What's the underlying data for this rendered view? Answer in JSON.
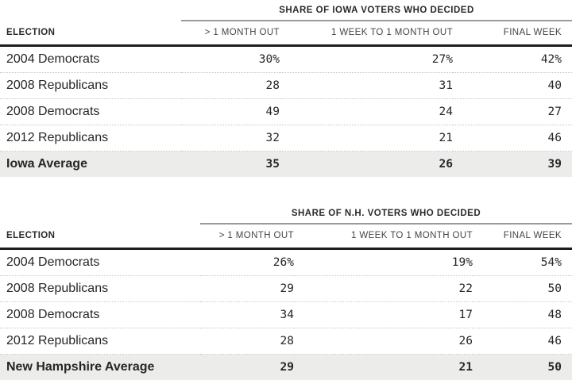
{
  "colors": {
    "background": "#ffffff",
    "text": "#262626",
    "spanner_rule": "#9a9a9a",
    "heavy_rule": "#1d1d1d",
    "row_divider_dotted": "#c8c8c8",
    "average_row_background": "#ececeb"
  },
  "chart_data": [
    {
      "type": "table",
      "title": "SHARE OF IOWA VOTERS WHO DECIDED",
      "columns": [
        "ELECTION",
        "> 1 MONTH OUT",
        "1 WEEK TO 1 MONTH OUT",
        "FINAL WEEK"
      ],
      "rows": [
        {
          "label": "2004 Democrats",
          "values": [
            "30%",
            "27%",
            "42%"
          ]
        },
        {
          "label": "2008 Republicans",
          "values": [
            "28",
            "31",
            "40"
          ]
        },
        {
          "label": "2008 Democrats",
          "values": [
            "49",
            "24",
            "27"
          ]
        },
        {
          "label": "2012 Republicans",
          "values": [
            "32",
            "21",
            "46"
          ]
        },
        {
          "label": "Iowa Average",
          "values": [
            "35",
            "26",
            "39"
          ],
          "is_average": true
        }
      ]
    },
    {
      "type": "table",
      "title": "SHARE OF N.H. VOTERS WHO DECIDED",
      "columns": [
        "ELECTION",
        "> 1 MONTH OUT",
        "1 WEEK TO 1 MONTH OUT",
        "FINAL WEEK"
      ],
      "rows": [
        {
          "label": "2004 Democrats",
          "values": [
            "26%",
            "19%",
            "54%"
          ]
        },
        {
          "label": "2008 Republicans",
          "values": [
            "29",
            "22",
            "50"
          ]
        },
        {
          "label": "2008 Democrats",
          "values": [
            "34",
            "17",
            "48"
          ]
        },
        {
          "label": "2012 Republicans",
          "values": [
            "28",
            "26",
            "46"
          ]
        },
        {
          "label": "New Hampshire Average",
          "values": [
            "29",
            "21",
            "50"
          ],
          "is_average": true
        }
      ]
    }
  ]
}
